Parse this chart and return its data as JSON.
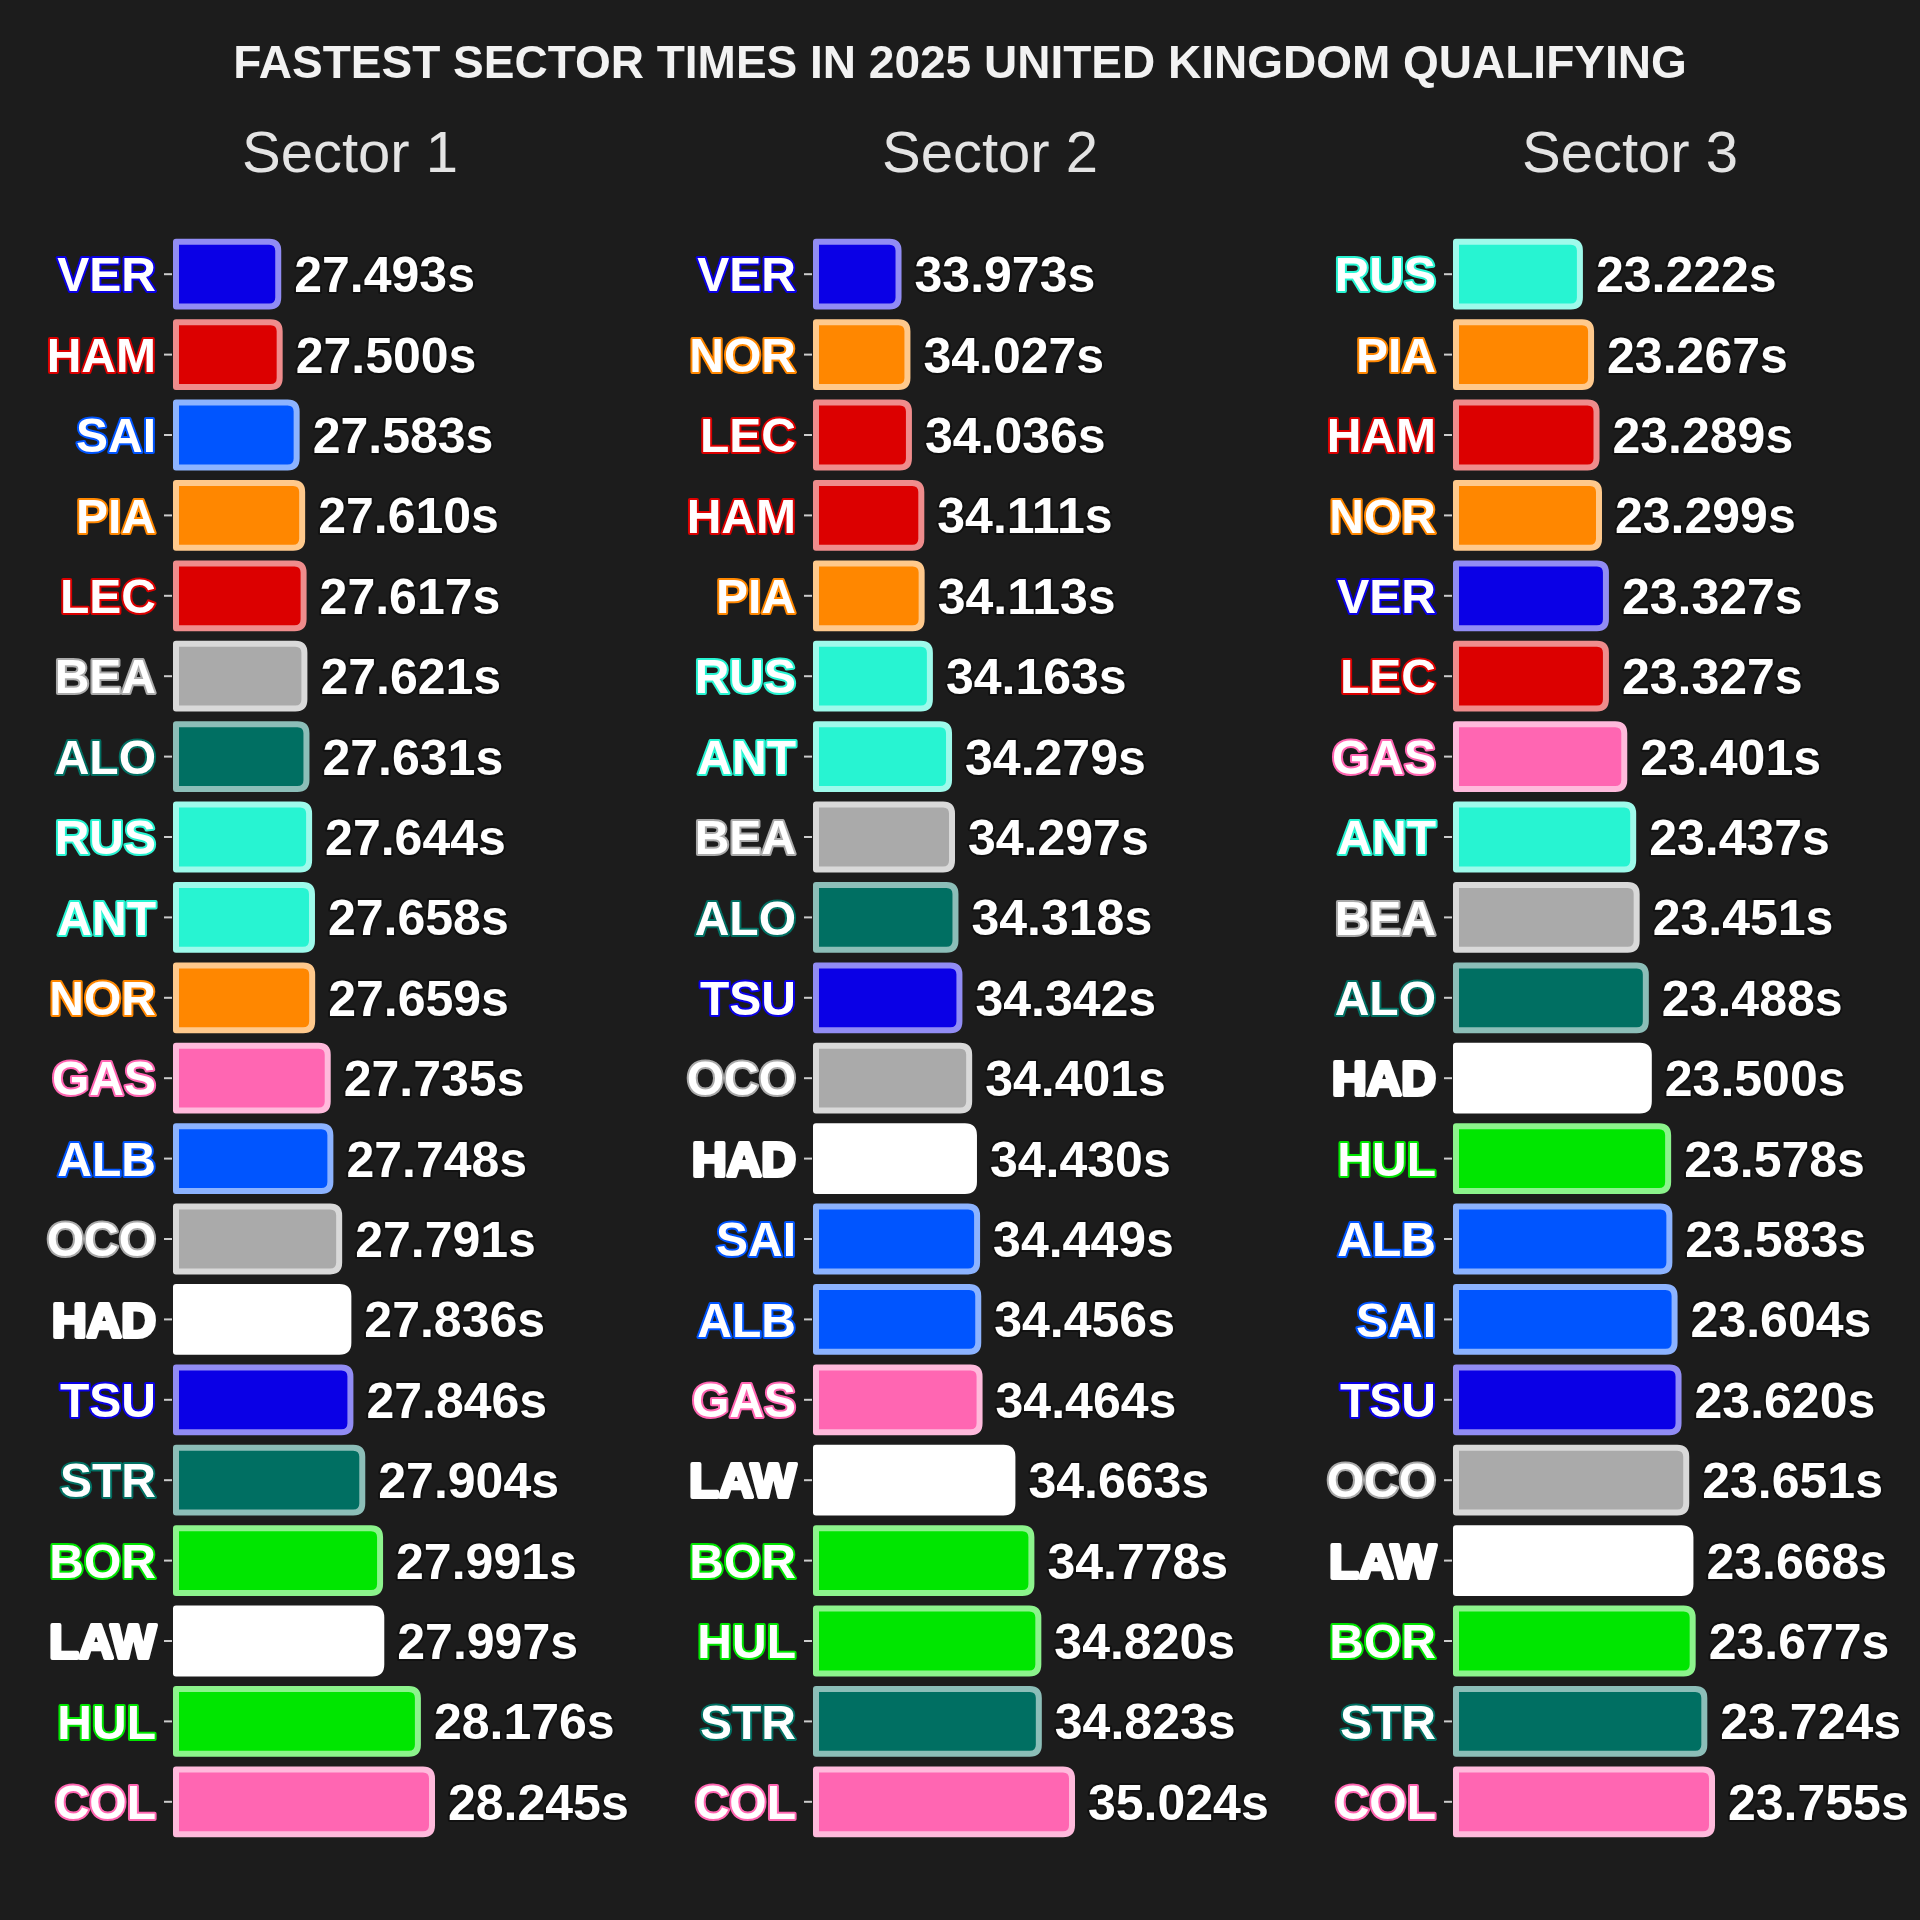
{
  "chart_data": [
    {
      "type": "other",
      "title": "FASTEST SECTOR TIMES IN 2025 UNITED KINGDOM QUALIFYING"
    },
    {
      "type": "bar",
      "orientation": "horizontal",
      "title": "Sector 1",
      "tick_labels": "y",
      "xlim": [
        26.993,
        28.245
      ],
      "categories": [
        "VER",
        "HAM",
        "SAI",
        "PIA",
        "LEC",
        "BEA",
        "ALO",
        "RUS",
        "ANT",
        "NOR",
        "GAS",
        "ALB",
        "OCO",
        "HAD",
        "TSU",
        "STR",
        "BOR",
        "LAW",
        "HUL",
        "COL"
      ],
      "values": [
        27.493,
        27.5,
        27.583,
        27.61,
        27.617,
        27.621,
        27.631,
        27.644,
        27.658,
        27.659,
        27.735,
        27.748,
        27.791,
        27.836,
        27.846,
        27.904,
        27.991,
        27.997,
        28.176,
        28.245
      ],
      "value_labels": [
        "27.493s",
        "27.500s",
        "27.583s",
        "27.610s",
        "27.617s",
        "27.621s",
        "27.631s",
        "27.644s",
        "27.658s",
        "27.659s",
        "27.735s",
        "27.748s",
        "27.791s",
        "27.836s",
        "27.846s",
        "27.904s",
        "27.991s",
        "27.997s",
        "28.176s",
        "28.245s"
      ],
      "colors": [
        "#0a00e6",
        "#dc0000",
        "#0055ff",
        "#ff8700",
        "#dc0000",
        "#aaaaaa",
        "#006f62",
        "#27f4d2",
        "#27f4d2",
        "#ff8700",
        "#ff66b2",
        "#0055ff",
        "#aaaaaa",
        "#ffffff",
        "#0a00e6",
        "#006f62",
        "#00e600",
        "#ffffff",
        "#00e600",
        "#ff66b2"
      ]
    },
    {
      "type": "bar",
      "orientation": "horizontal",
      "title": "Sector 2",
      "tick_labels": "y",
      "xlim": [
        33.473,
        35.024
      ],
      "categories": [
        "VER",
        "NOR",
        "LEC",
        "HAM",
        "PIA",
        "RUS",
        "ANT",
        "BEA",
        "ALO",
        "TSU",
        "OCO",
        "HAD",
        "SAI",
        "ALB",
        "GAS",
        "LAW",
        "BOR",
        "HUL",
        "STR",
        "COL"
      ],
      "values": [
        33.973,
        34.027,
        34.036,
        34.111,
        34.113,
        34.163,
        34.279,
        34.297,
        34.318,
        34.342,
        34.401,
        34.43,
        34.449,
        34.456,
        34.464,
        34.663,
        34.778,
        34.82,
        34.823,
        35.024
      ],
      "value_labels": [
        "33.973s",
        "34.027s",
        "34.036s",
        "34.111s",
        "34.113s",
        "34.163s",
        "34.279s",
        "34.297s",
        "34.318s",
        "34.342s",
        "34.401s",
        "34.430s",
        "34.449s",
        "34.456s",
        "34.464s",
        "34.663s",
        "34.778s",
        "34.820s",
        "34.823s",
        "35.024s"
      ],
      "colors": [
        "#0a00e6",
        "#ff8700",
        "#dc0000",
        "#dc0000",
        "#ff8700",
        "#27f4d2",
        "#27f4d2",
        "#aaaaaa",
        "#006f62",
        "#0a00e6",
        "#aaaaaa",
        "#ffffff",
        "#0055ff",
        "#0055ff",
        "#ff66b2",
        "#ffffff",
        "#00e600",
        "#00e600",
        "#006f62",
        "#ff66b2"
      ]
    },
    {
      "type": "bar",
      "orientation": "horizontal",
      "title": "Sector 3",
      "tick_labels": "y",
      "xlim": [
        22.722,
        23.755
      ],
      "categories": [
        "RUS",
        "PIA",
        "HAM",
        "NOR",
        "VER",
        "LEC",
        "GAS",
        "ANT",
        "BEA",
        "ALO",
        "HAD",
        "HUL",
        "ALB",
        "SAI",
        "TSU",
        "OCO",
        "LAW",
        "BOR",
        "STR",
        "COL"
      ],
      "values": [
        23.222,
        23.267,
        23.289,
        23.299,
        23.327,
        23.327,
        23.401,
        23.437,
        23.451,
        23.488,
        23.5,
        23.578,
        23.583,
        23.604,
        23.62,
        23.651,
        23.668,
        23.677,
        23.724,
        23.755
      ],
      "value_labels": [
        "23.222s",
        "23.267s",
        "23.289s",
        "23.299s",
        "23.327s",
        "23.327s",
        "23.401s",
        "23.437s",
        "23.451s",
        "23.488s",
        "23.500s",
        "23.578s",
        "23.583s",
        "23.604s",
        "23.620s",
        "23.651s",
        "23.668s",
        "23.677s",
        "23.724s",
        "23.755s"
      ],
      "colors": [
        "#27f4d2",
        "#ff8700",
        "#dc0000",
        "#ff8700",
        "#0a00e6",
        "#dc0000",
        "#ff66b2",
        "#27f4d2",
        "#aaaaaa",
        "#006f62",
        "#ffffff",
        "#00e600",
        "#0055ff",
        "#0055ff",
        "#0a00e6",
        "#aaaaaa",
        "#ffffff",
        "#00e600",
        "#006f62",
        "#ff66b2"
      ]
    }
  ]
}
